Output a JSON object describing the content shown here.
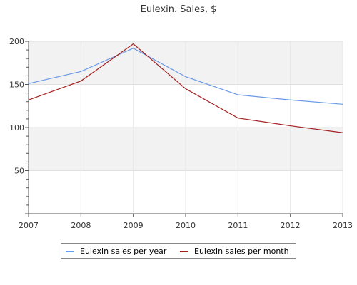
{
  "chart_data": {
    "type": "line",
    "title": "Eulexin. Sales, $",
    "x": [
      "2007",
      "2008",
      "2009",
      "2010",
      "2011",
      "2012",
      "2013"
    ],
    "yticks": [
      "50",
      "100",
      "150",
      "200"
    ],
    "ylim": [
      0,
      200
    ],
    "grid": "horizontal bands, light grey",
    "legend_position": "bottom",
    "series": [
      {
        "name": "Eulexin sales per year",
        "color": "#6a9ae8",
        "values": [
          151,
          165,
          192,
          159,
          138,
          132,
          127
        ]
      },
      {
        "name": "Eulexin sales per month",
        "color": "#a32020",
        "values": [
          132,
          154,
          197,
          145,
          111,
          102,
          94
        ]
      }
    ]
  }
}
